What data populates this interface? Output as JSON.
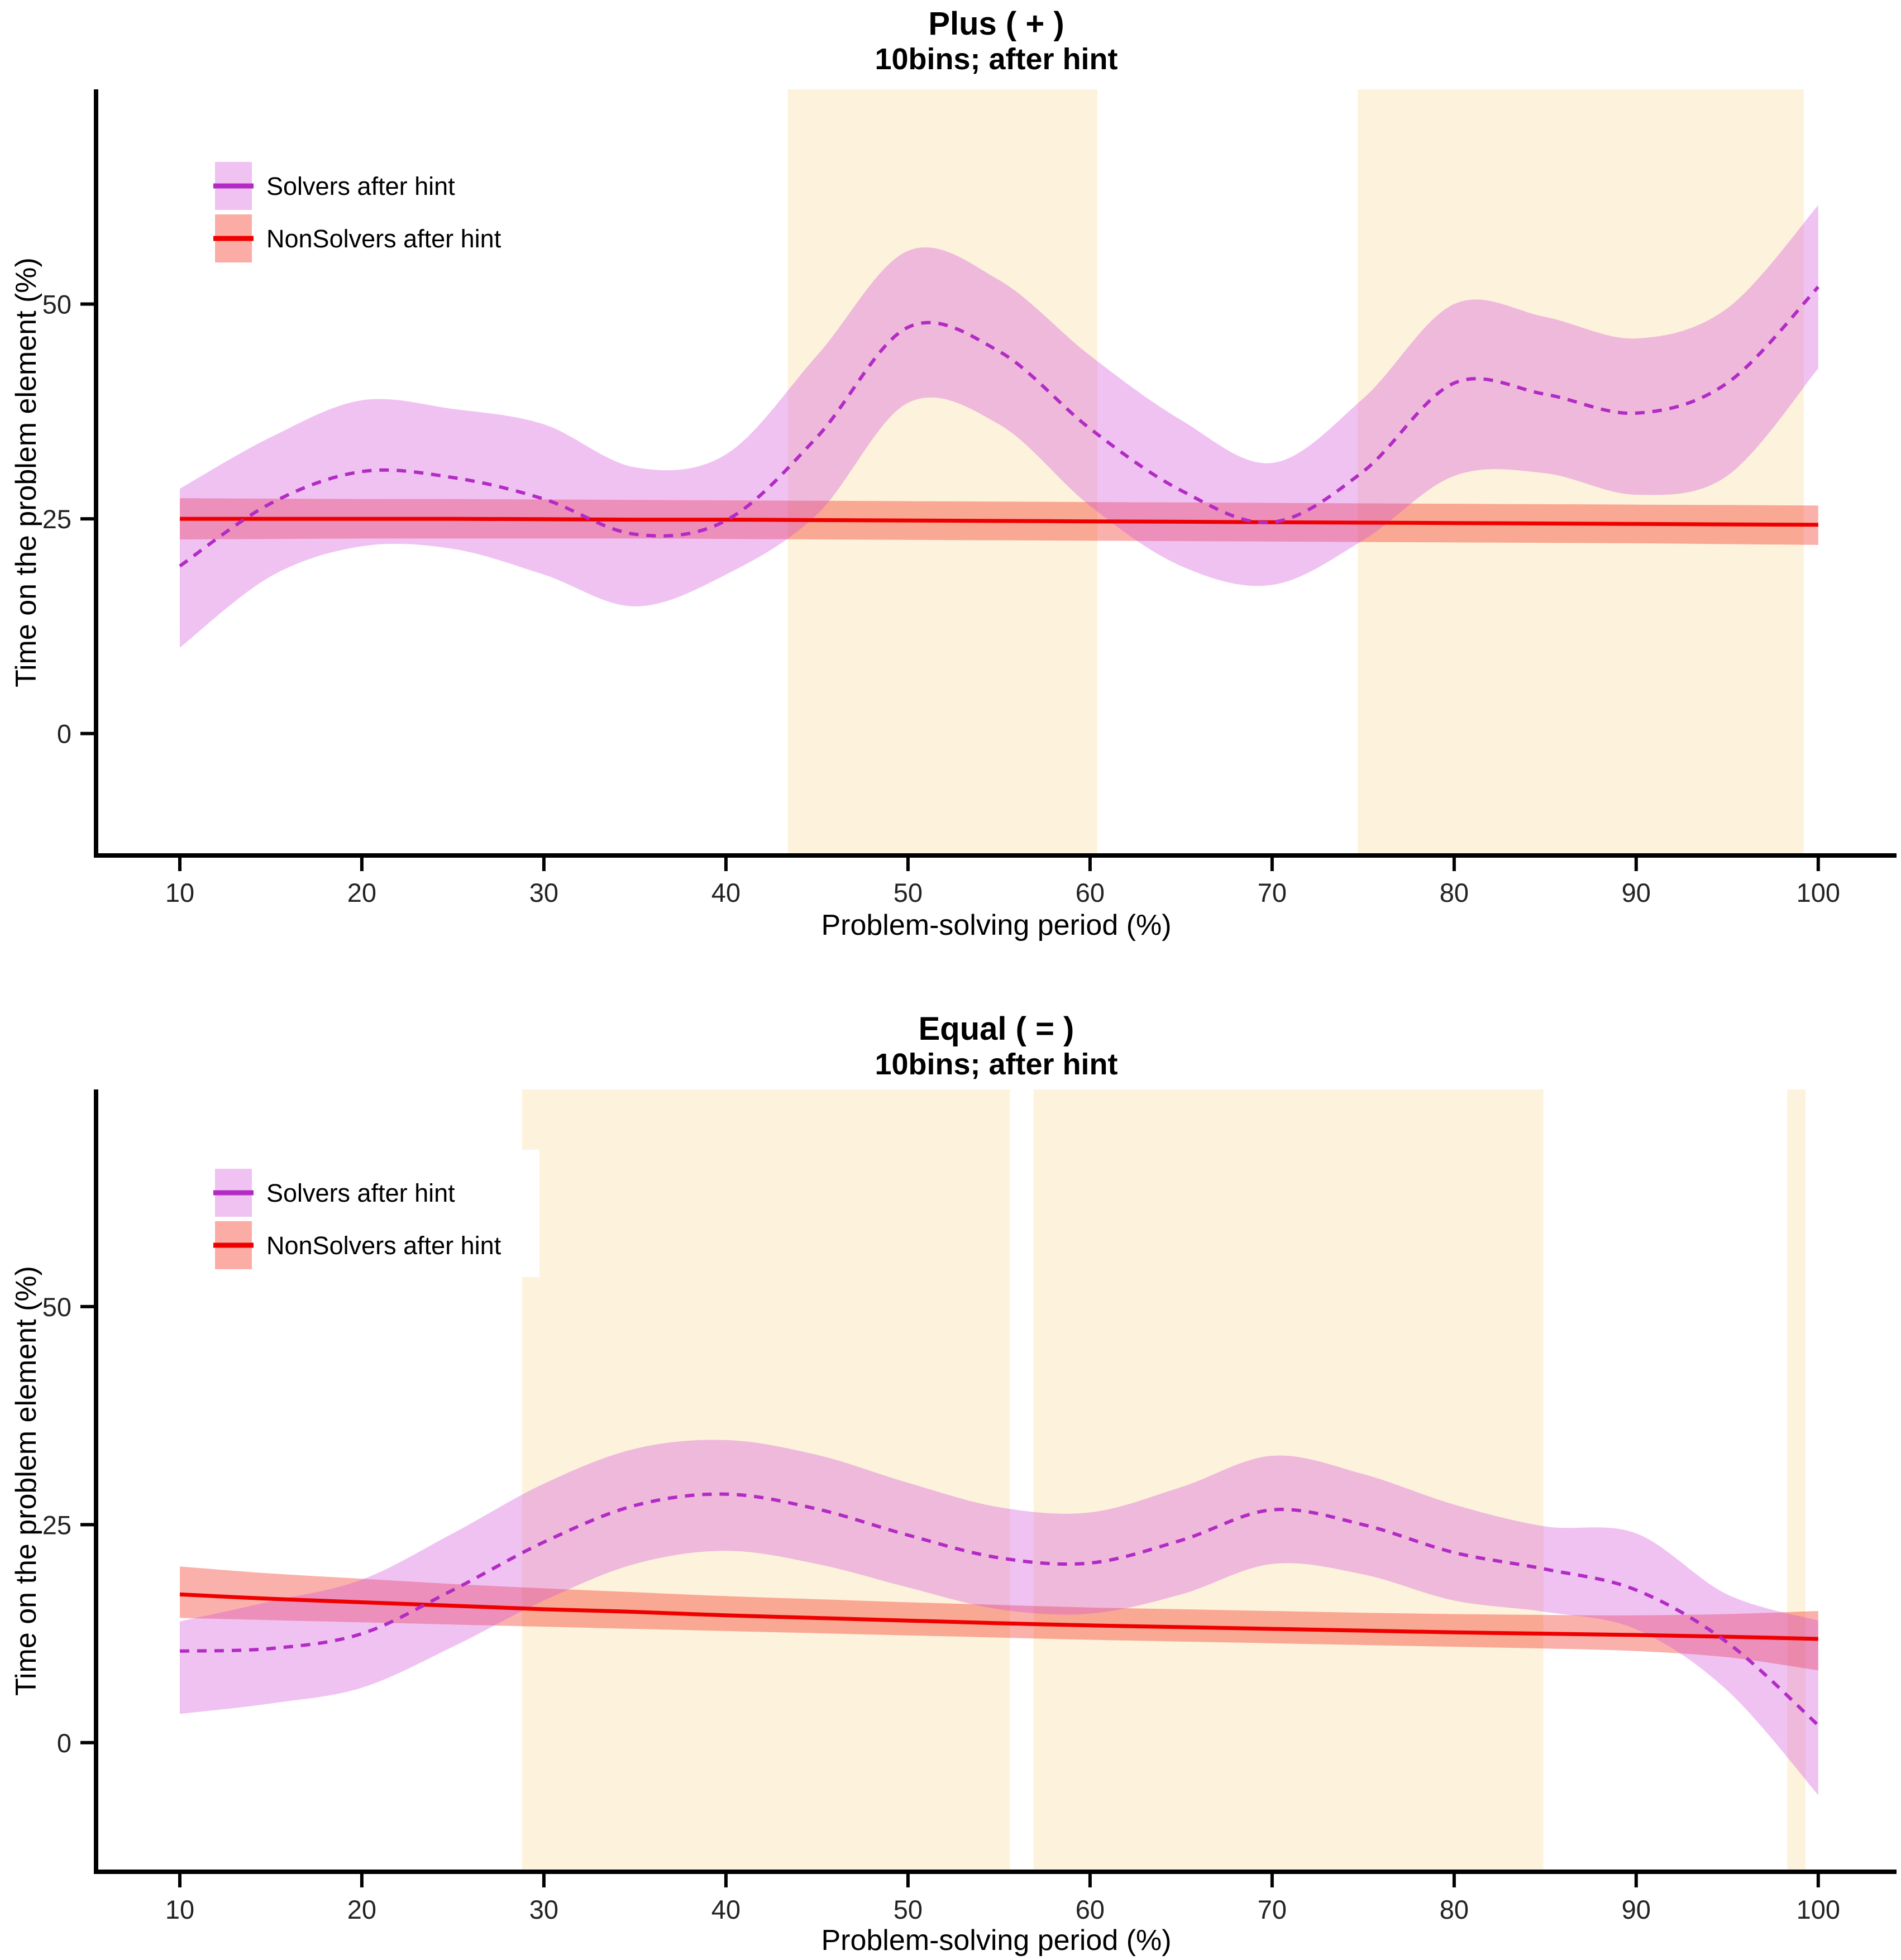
{
  "figure": {
    "background": "#FFFFFF",
    "text_color": "#000000",
    "axis_color": "#000000"
  },
  "charts": [
    {
      "title": "Plus ( + )",
      "subtitle": "10bins; after hint",
      "xlabel": "Problem-solving period (%)",
      "ylabel": "Time on the problem element (%)",
      "legend": [
        {
          "label": "Solvers after hint",
          "fill": "#EFC2F2",
          "line": "#B32BC4"
        },
        {
          "label": "NonSolvers after hint",
          "fill": "#FBACA4",
          "line": "#EE0000"
        }
      ],
      "chart_data": {
        "type": "line",
        "title": "Plus ( + )",
        "subtitle": "10bins; after hint",
        "xlabel": "Problem-solving period (%)",
        "ylabel": "Time on the problem element (%)",
        "xlim": [
          5.4,
          104.3
        ],
        "ylim": [
          -14.2,
          75.0
        ],
        "x_ticks": [
          10,
          20,
          30,
          40,
          50,
          60,
          70,
          80,
          90,
          100
        ],
        "y_ticks": [
          0,
          25,
          50
        ],
        "grid": false,
        "legend_position": "top-left-inside",
        "highlight_color": "#FDF2DC",
        "highlight_bands_x": [
          [
            43.4,
            60.4
          ],
          [
            74.7,
            99.2
          ]
        ],
        "x": [
          10,
          15,
          20,
          25,
          30,
          35,
          40,
          45,
          50,
          55,
          60,
          65,
          70,
          75,
          80,
          85,
          90,
          95,
          100
        ],
        "series": [
          {
            "name": "Solvers after hint",
            "style": "dashed",
            "color": "#B32BC4",
            "band_color": "rgba(209,81,218,0.35)",
            "y": [
              19.5,
              26.8,
              30.5,
              29.8,
              27.3,
              23.2,
              24.8,
              34.5,
              47.3,
              44.5,
              35.5,
              28.3,
              24.6,
              30.5,
              40.8,
              39.5,
              37.3,
              40.8,
              52.0
            ],
            "ci_low": [
              10.0,
              18.3,
              21.8,
              21.5,
              18.5,
              14.8,
              18.5,
              25.5,
              38.5,
              36.0,
              26.5,
              19.5,
              17.3,
              22.5,
              30.0,
              30.3,
              27.8,
              30.0,
              42.5
            ],
            "ci_high": [
              28.5,
              34.5,
              38.8,
              37.8,
              36.0,
              31.0,
              32.5,
              44.0,
              56.2,
              52.8,
              44.0,
              36.5,
              31.5,
              39.0,
              50.0,
              48.5,
              46.0,
              49.5,
              61.5
            ]
          },
          {
            "name": "NonSolvers after hint",
            "style": "solid",
            "color": "#EE0000",
            "band_color": "rgba(244,18,0,0.33)",
            "y": [
              25.0,
              25.0,
              25.0,
              25.0,
              24.95,
              24.9,
              24.9,
              24.85,
              24.8,
              24.75,
              24.7,
              24.65,
              24.6,
              24.55,
              24.5,
              24.45,
              24.4,
              24.35,
              24.3
            ],
            "ci_low": [
              22.6,
              22.65,
              22.7,
              22.7,
              22.7,
              22.7,
              22.65,
              22.6,
              22.55,
              22.5,
              22.45,
              22.4,
              22.35,
              22.3,
              22.25,
              22.2,
              22.15,
              22.05,
              21.95
            ],
            "ci_high": [
              27.4,
              27.35,
              27.3,
              27.3,
              27.25,
              27.2,
              27.15,
              27.1,
              27.05,
              27.0,
              26.95,
              26.9,
              26.85,
              26.8,
              26.75,
              26.7,
              26.65,
              26.6,
              26.55
            ]
          }
        ]
      }
    },
    {
      "title": "Equal ( = )",
      "subtitle": "10bins; after hint",
      "xlabel": "Problem-solving period (%)",
      "ylabel": "Time on the problem element (%)",
      "legend": [
        {
          "label": "Solvers after hint",
          "fill": "#EFC2F2",
          "line": "#B32BC4"
        },
        {
          "label": "NonSolvers after hint",
          "fill": "#FBACA4",
          "line": "#EE0000"
        }
      ],
      "chart_data": {
        "type": "line",
        "title": "Equal ( = )",
        "subtitle": "10bins; after hint",
        "xlabel": "Problem-solving period (%)",
        "ylabel": "Time on the problem element (%)",
        "xlim": [
          5.4,
          104.3
        ],
        "ylim": [
          -14.8,
          74.9
        ],
        "x_ticks": [
          10,
          20,
          30,
          40,
          50,
          60,
          70,
          80,
          90,
          100
        ],
        "y_ticks": [
          0,
          25,
          50
        ],
        "grid": false,
        "legend_position": "top-left-inside",
        "highlight_color": "#FDF2DC",
        "highlight_bands_x": [
          [
            28.8,
            55.6
          ],
          [
            56.9,
            84.9
          ],
          [
            98.3,
            99.3
          ]
        ],
        "x": [
          10,
          15,
          20,
          25,
          30,
          35,
          40,
          45,
          50,
          55,
          60,
          65,
          70,
          75,
          80,
          85,
          90,
          95,
          100
        ],
        "series": [
          {
            "name": "Solvers after hint",
            "style": "dashed",
            "color": "#B32BC4",
            "band_color": "rgba(209,81,218,0.35)",
            "y": [
              10.5,
              10.8,
              12.5,
              17.5,
              23.0,
              27.2,
              28.5,
              26.8,
              23.8,
              21.2,
              20.6,
              23.2,
              26.7,
              25.0,
              21.8,
              19.9,
              17.5,
              11.5,
              2.0
            ],
            "ci_low": [
              3.3,
              4.5,
              6.3,
              11.0,
              16.3,
              20.5,
              22.0,
              20.5,
              17.8,
              15.3,
              14.8,
              17.0,
              20.5,
              19.3,
              16.3,
              15.0,
              13.0,
              6.0,
              -6.0
            ],
            "ci_high": [
              13.9,
              16.2,
              18.7,
              24.0,
              29.7,
              33.7,
              34.7,
              33.0,
              29.8,
              27.0,
              26.4,
              29.3,
              32.9,
              30.8,
              27.3,
              24.8,
              24.0,
              17.0,
              14.0
            ]
          },
          {
            "name": "NonSolvers after hint",
            "style": "solid",
            "color": "#EE0000",
            "band_color": "rgba(244,18,0,0.33)",
            "y": [
              17.0,
              16.5,
              16.1,
              15.7,
              15.3,
              15.0,
              14.6,
              14.3,
              14.0,
              13.7,
              13.45,
              13.25,
              13.05,
              12.85,
              12.65,
              12.5,
              12.35,
              12.15,
              11.9
            ],
            "ci_low": [
              14.3,
              14.05,
              13.8,
              13.55,
              13.3,
              13.05,
              12.8,
              12.55,
              12.3,
              12.05,
              11.8,
              11.6,
              11.4,
              11.2,
              11.0,
              10.8,
              10.5,
              9.8,
              8.3
            ],
            "ci_high": [
              20.2,
              19.4,
              18.8,
              18.2,
              17.7,
              17.25,
              16.8,
              16.45,
              16.1,
              15.8,
              15.5,
              15.3,
              15.1,
              14.9,
              14.75,
              14.65,
              14.6,
              14.75,
              15.1
            ]
          }
        ]
      }
    }
  ]
}
